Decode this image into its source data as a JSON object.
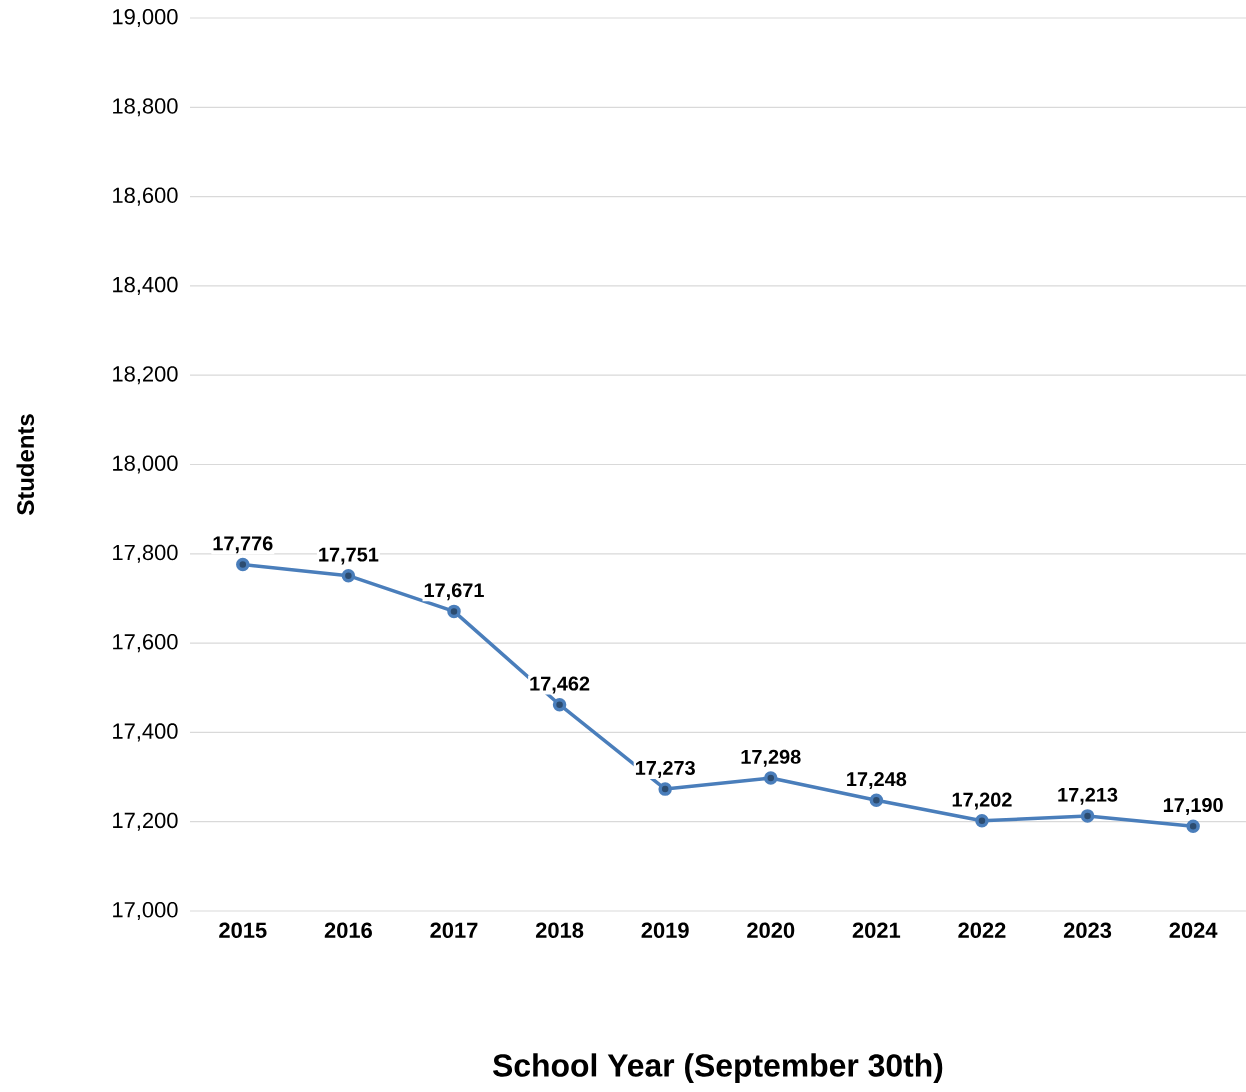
{
  "chart_data": {
    "type": "line",
    "xlabel": "School Year (September 30th)",
    "ylabel": "Students",
    "categories": [
      "2015",
      "2016",
      "2017",
      "2018",
      "2019",
      "2020",
      "2021",
      "2022",
      "2023",
      "2024"
    ],
    "series": [
      {
        "color": "#4a7ebb",
        "values": [
          17776,
          17751,
          17671,
          17462,
          17273,
          17298,
          17248,
          17202,
          17213,
          17190
        ],
        "value_labels": [
          "17,776",
          "17,751",
          "17,671",
          "17,462",
          "17,273",
          "17,298",
          "17,248",
          "17,202",
          "17,213",
          "17,190"
        ]
      }
    ],
    "ylim": [
      17000,
      19000
    ],
    "yticks": [
      {
        "value": 17000,
        "label": "17,000"
      },
      {
        "value": 17200,
        "label": "17,200"
      },
      {
        "value": 17400,
        "label": "17,400"
      },
      {
        "value": 17600,
        "label": "17,600"
      },
      {
        "value": 17800,
        "label": "17,800"
      },
      {
        "value": 18000,
        "label": "18,000"
      },
      {
        "value": 18200,
        "label": "18,200"
      },
      {
        "value": 18400,
        "label": "18,400"
      },
      {
        "value": 18600,
        "label": "18,600"
      },
      {
        "value": 18800,
        "label": "18,800"
      },
      {
        "value": 19000,
        "label": "19,000"
      }
    ],
    "grid": "y",
    "marker": "circle",
    "line_style": "solid"
  }
}
